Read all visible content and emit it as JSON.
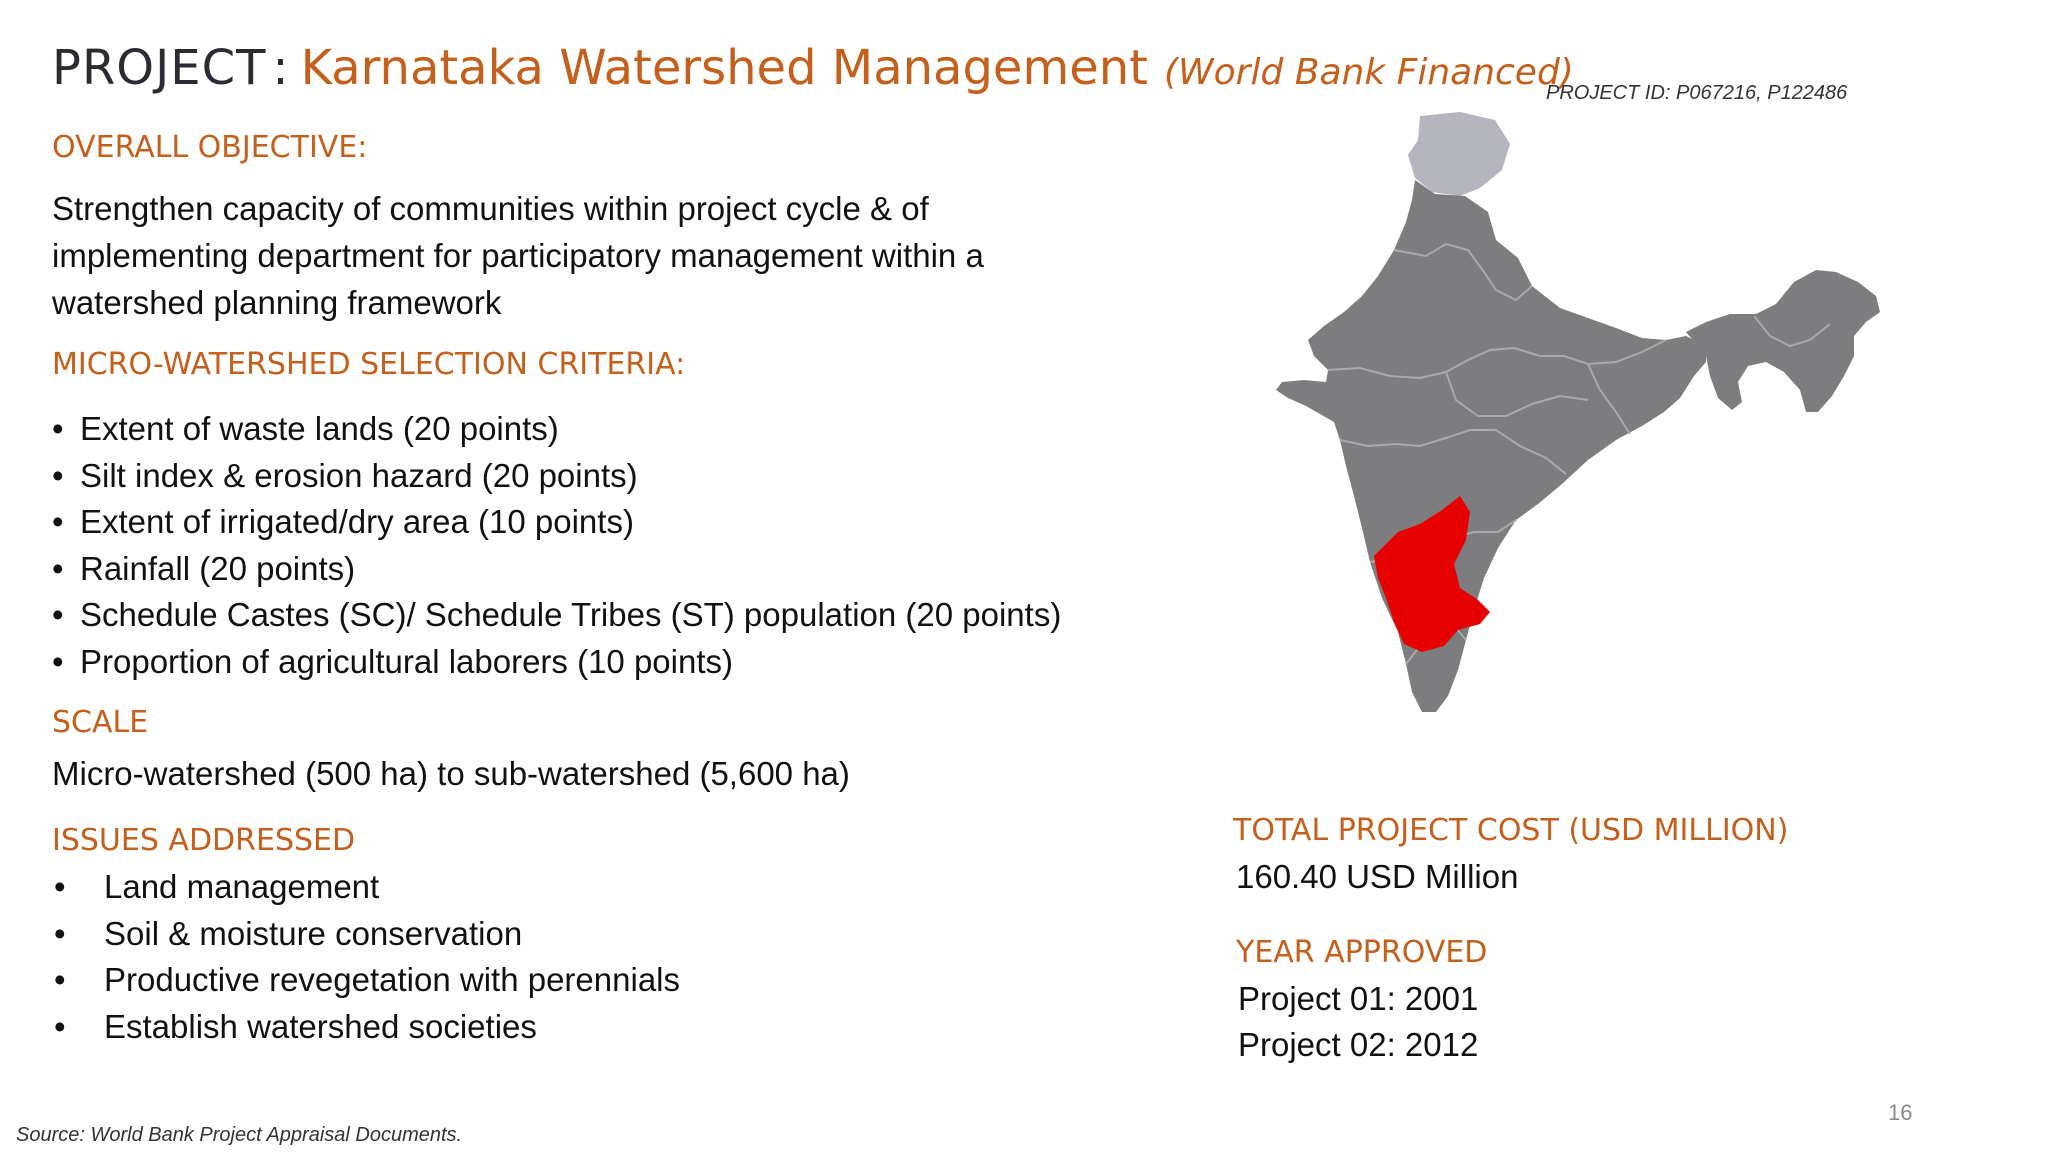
{
  "title": {
    "prefix": "PROJECT",
    "colon": ":",
    "main": "Karnataka Watershed Management",
    "sub": "(World Bank Financed)"
  },
  "project_id": "PROJECT ID: P067216, P122486",
  "overall_objective": {
    "heading": "OVERALL OBJECTIVE:",
    "text": "Strengthen capacity of communities within project cycle & of implementing department for participatory management within a watershed planning framework"
  },
  "selection_criteria": {
    "heading": "MICRO-WATERSHED SELECTION CRITERIA:",
    "bullet": "•",
    "items": [
      "Extent of waste lands (20 points)",
      "Silt index & erosion hazard (20 points)",
      "Extent of irrigated/dry area (10 points)",
      "Rainfall (20 points)",
      "Schedule Castes (SC)/ Schedule Tribes (ST) population (20 points)",
      "Proportion of agricultural laborers (10 points)"
    ]
  },
  "scale": {
    "heading": "SCALE",
    "text": "Micro-watershed (500 ha) to sub-watershed (5,600 ha)"
  },
  "issues": {
    "heading": "ISSUES ADDRESSED",
    "bullet": "•",
    "items": [
      "Land management",
      "Soil & moisture conservation",
      "Productive revegetation with perennials",
      "Establish watershed societies"
    ]
  },
  "cost": {
    "heading": "TOTAL PROJECT COST (USD MILLION)",
    "value": "160.40 USD Million"
  },
  "year": {
    "heading": "YEAR APPROVED",
    "project1": "Project 01: 2001",
    "project2": "Project 02: 2012"
  },
  "map": {
    "country_color": "#7d7d7f",
    "north_color": "#b5b5bd",
    "highlight_color": "#e60000",
    "border_color": "#a9a9ad"
  },
  "source": "Source: World Bank Project Appraisal Documents.",
  "page_number": "16"
}
